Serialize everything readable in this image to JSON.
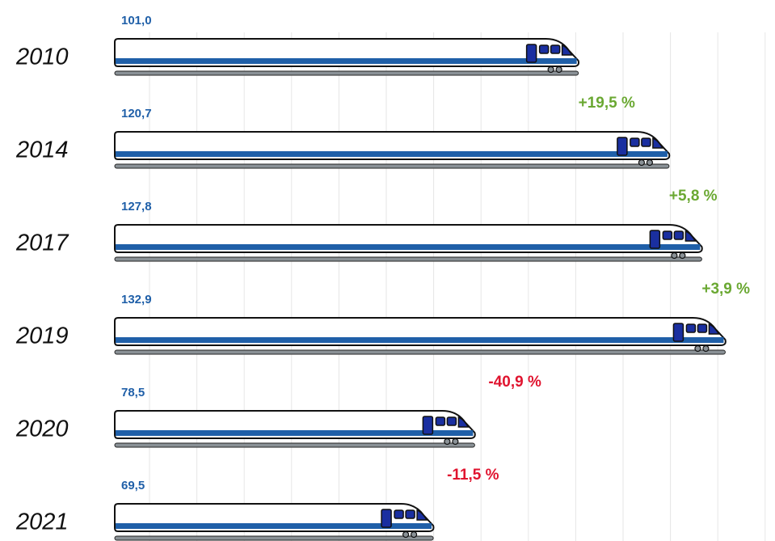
{
  "chart_data": {
    "type": "train-bar",
    "categories": [
      "2010",
      "2014",
      "2017",
      "2019",
      "2020",
      "2021"
    ],
    "values": [
      101.0,
      120.7,
      127.8,
      132.9,
      78.5,
      69.5
    ],
    "value_labels": [
      "101,0",
      "120,7",
      "127,8",
      "132,9",
      "78,5",
      "69,5"
    ],
    "changes": [
      {
        "value": 19.5,
        "label": "+19,5 %"
      },
      {
        "value": 5.8,
        "label": "+5,8 %"
      },
      {
        "value": 3.9,
        "label": "+3,9 %"
      },
      {
        "value": -40.9,
        "label": "-40,9 %"
      },
      {
        "value": -11.5,
        "label": "-11,5 %"
      }
    ],
    "color": "#1f5fa8",
    "increase_color": "#6aa832",
    "decrease_color": "#e0142f",
    "xlim": [
      0,
      143
    ]
  }
}
